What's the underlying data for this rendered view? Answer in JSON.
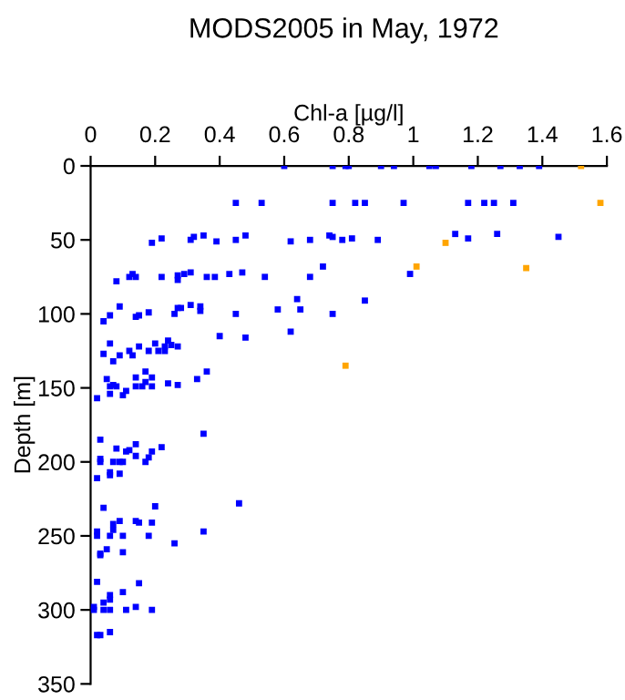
{
  "chart_data": {
    "type": "scatter",
    "title": "MODS2005 in May, 1972",
    "xlabel": "Chl-a [µg/l]",
    "ylabel": "Depth [m]",
    "xlim": [
      0,
      1.6
    ],
    "xticks": [
      0,
      0.2,
      0.4,
      0.6,
      0.8,
      1,
      1.2,
      1.4,
      1.6
    ],
    "ylim": [
      350,
      0
    ],
    "yticks": [
      0,
      50,
      100,
      150,
      200,
      250,
      300,
      350
    ],
    "grid": false,
    "legend": false,
    "marker": "square",
    "series": [
      {
        "color": "#0000ff",
        "x": [
          0.6,
          0.75,
          0.79,
          0.8,
          0.9,
          0.94,
          1.05,
          1.07,
          1.18,
          1.27,
          1.33,
          1.39,
          0.45,
          0.53,
          0.75,
          0.82,
          0.85,
          0.97,
          1.17,
          1.22,
          1.25,
          1.31,
          0.22,
          0.19,
          0.31,
          0.32,
          0.35,
          0.39,
          0.45,
          0.48,
          0.62,
          0.68,
          0.74,
          0.78,
          0.75,
          0.81,
          0.89,
          1.13,
          1.17,
          1.26,
          1.45,
          0.99,
          0.85,
          0.75,
          0.08,
          0.12,
          0.13,
          0.14,
          0.22,
          0.27,
          0.27,
          0.29,
          0.31,
          0.36,
          0.385,
          0.43,
          0.47,
          0.54,
          0.68,
          0.72,
          0.64,
          0.58,
          0.65,
          0.31,
          0.34,
          0.34,
          0.27,
          0.28,
          0.26,
          0.18,
          0.15,
          0.14,
          0.09,
          0.06,
          0.04,
          0.45,
          0.4,
          0.48,
          0.62,
          0.06,
          0.04,
          0.09,
          0.12,
          0.13,
          0.15,
          0.18,
          0.2,
          0.21,
          0.23,
          0.23,
          0.24,
          0.25,
          0.27,
          0.07,
          0.05,
          0.07,
          0.06,
          0.08,
          0.06,
          0.1,
          0.11,
          0.14,
          0.14,
          0.16,
          0.17,
          0.17,
          0.19,
          0.19,
          0.24,
          0.27,
          0.33,
          0.36,
          0.02,
          0.03,
          0.08,
          0.14,
          0.22,
          0.19,
          0.11,
          0.12,
          0.14,
          0.18,
          0.17,
          0.03,
          0.03,
          0.07,
          0.09,
          0.1,
          0.02,
          0.06,
          0.06,
          0.09,
          0.35,
          0.46,
          0.04,
          0.2,
          0.07,
          0.07,
          0.09,
          0.14,
          0.15,
          0.19,
          0.02,
          0.02,
          0.06,
          0.1,
          0.18,
          0.35,
          0.26,
          0.05,
          0.03,
          0.03,
          0.1,
          0.02,
          0.15,
          0.06,
          0.06,
          0.1,
          0.04,
          0.01,
          0.01,
          0.04,
          0.06,
          0.11,
          0.14,
          0.19,
          0.02,
          0.03,
          0.06
        ],
        "values": [
          0,
          0,
          0,
          0,
          0,
          0,
          0,
          0,
          0,
          0,
          0,
          0,
          25,
          25,
          25,
          25,
          25,
          25,
          25,
          25,
          25,
          25,
          49,
          52,
          50,
          48,
          47,
          51,
          50,
          47,
          51,
          50,
          47,
          50,
          48,
          49,
          50,
          46,
          49,
          46,
          48,
          73,
          91,
          100,
          78,
          75,
          73,
          75,
          75,
          74,
          77,
          73,
          72,
          75,
          75,
          73,
          72,
          75,
          75,
          68,
          90,
          97,
          97,
          94,
          95,
          98,
          96,
          96,
          100,
          99,
          101,
          102,
          95,
          101,
          105,
          100,
          115,
          116,
          112,
          120,
          127,
          128,
          125,
          128,
          122,
          125,
          120,
          125,
          122,
          125,
          118,
          121,
          122,
          132,
          144,
          148,
          149,
          149,
          154,
          155,
          152,
          143,
          149,
          149,
          139,
          146,
          143,
          149,
          147,
          148,
          144,
          139,
          157,
          185,
          191,
          188,
          190,
          193,
          193,
          192,
          196,
          197,
          200,
          198,
          200,
          200,
          200,
          200,
          211,
          207,
          209,
          208,
          181,
          228,
          231,
          230,
          242,
          246,
          240,
          240,
          241,
          241,
          247,
          250,
          250,
          250,
          250,
          247,
          255,
          259,
          262,
          263,
          261,
          281,
          282,
          290,
          293,
          288,
          295,
          298,
          300,
          300,
          300,
          300,
          298,
          300,
          317,
          317,
          315
        ]
      },
      {
        "color": "#ffa500",
        "x": [
          1.52,
          1.58,
          1.1,
          1.01,
          1.35,
          0.79
        ],
        "values": [
          0,
          25,
          52,
          68,
          69,
          135
        ]
      }
    ]
  }
}
